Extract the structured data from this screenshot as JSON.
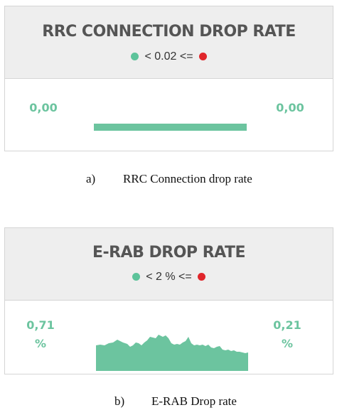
{
  "panel_a": {
    "title": "RRC CONNECTION DROP RATE",
    "legend": {
      "text": "< 0.02  <=",
      "left_color": "#5cc39a",
      "right_color": "#e0262b"
    },
    "value_left": "0,00",
    "value_right": "0,00",
    "caption_tag": "a)",
    "caption_text": "RRC Connection drop rate"
  },
  "panel_b": {
    "title": "E-RAB DROP RATE",
    "legend": {
      "text": "< 2 % <=",
      "left_color": "#5cc39a",
      "right_color": "#e0262b"
    },
    "value_left": "0,71",
    "value_left_unit": "%",
    "value_right": "0,21",
    "value_right_unit": "%",
    "caption_tag": "b)",
    "caption_text": "E-RAB Drop rate"
  },
  "colors": {
    "accent": "#6cc49f",
    "fill": "#6cc49f",
    "header_bg": "#eeeeee",
    "title": "#555555"
  }
}
